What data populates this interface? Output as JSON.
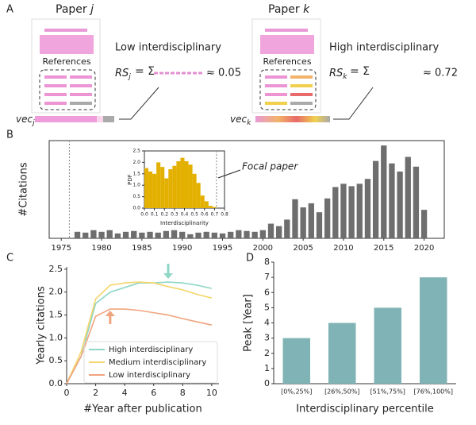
{
  "panel_labels": [
    "A",
    "B",
    "C",
    "D"
  ],
  "diagram": {
    "left": {
      "paper": "Paper",
      "symbol": "j",
      "references": "References",
      "label": "Low interdisciplinary",
      "rs": "RS",
      "eq": "= Σ",
      "approx": "≈ 0.05",
      "vec": "vec"
    },
    "right": {
      "paper": "Paper",
      "symbol": "k",
      "references": "References",
      "label": "High interdisciplinary",
      "rs": "RS",
      "eq": "= Σ",
      "approx": "≈ 0.72",
      "vec": "vec"
    }
  },
  "chart_data": [
    {
      "type": "bar",
      "ylabel": "#Citations",
      "color": "#6e6e6e",
      "x": [
        1977,
        1978,
        1979,
        1980,
        1981,
        1982,
        1983,
        1984,
        1985,
        1986,
        1987,
        1988,
        1989,
        1990,
        1991,
        1992,
        1993,
        1994,
        1995,
        1996,
        1997,
        1998,
        1999,
        2000,
        2001,
        2002,
        2003,
        2004,
        2005,
        2006,
        2007,
        2008,
        2009,
        2010,
        2011,
        2012,
        2013,
        2014,
        2015,
        2016,
        2017,
        2018,
        2019,
        2020
      ],
      "values": [
        8,
        7,
        10,
        8,
        10,
        6,
        8,
        9,
        7,
        8,
        7,
        9,
        10,
        8,
        5,
        7,
        8,
        7,
        6,
        8,
        10,
        9,
        8,
        10,
        18,
        15,
        23,
        48,
        38,
        43,
        32,
        49,
        63,
        67,
        64,
        67,
        73,
        95,
        114,
        92,
        82,
        100,
        88,
        35
      ],
      "xlim": [
        1973.5,
        2022.5
      ],
      "xticks": [
        1975,
        1980,
        1985,
        1990,
        1995,
        2000,
        2005,
        2010,
        2015,
        2020
      ],
      "ylim": [
        0,
        120
      ],
      "vline": 1976
    },
    {
      "type": "histogram",
      "xlabel": "Interdisciplinarity",
      "ylabel": "PDF",
      "color": "#e3b000",
      "annotation": "Focal paper",
      "bins": [
        0,
        0.04,
        0.08,
        0.12,
        0.16,
        0.2,
        0.24,
        0.28,
        0.32,
        0.36,
        0.4,
        0.44,
        0.48,
        0.52,
        0.56,
        0.6,
        0.64,
        0.68,
        0.72
      ],
      "values": [
        1.75,
        1.6,
        1.5,
        2.0,
        1.8,
        1.3,
        1.7,
        1.85,
        2.05,
        2.2,
        2.05,
        1.9,
        1.5,
        1.1,
        0.55,
        0.3,
        0.1,
        0.05
      ],
      "xlim": [
        0,
        0.8
      ],
      "xticks": [
        {
          "value": 0,
          "label": "0.0"
        },
        0.1,
        0.2,
        0.3,
        0.4,
        0.5,
        0.6,
        0.7,
        0.8
      ],
      "ylim": [
        0,
        2.5
      ],
      "yticks": [
        {
          "value": 0,
          "label": "0.0"
        },
        0.5,
        {
          "value": 1,
          "label": "1.0"
        },
        1.5,
        {
          "value": 2,
          "label": "2.0"
        },
        2.5
      ],
      "vline": 0.72
    },
    {
      "type": "line",
      "xlabel": "#Year after publication",
      "ylabel": "Yearly citations",
      "x": [
        0,
        1,
        2,
        3,
        4,
        5,
        6,
        7,
        8,
        9,
        10
      ],
      "series": [
        {
          "name": "High interdisciplinary",
          "color": "#8fd6c6",
          "values": [
            0,
            0.6,
            1.75,
            2.0,
            2.1,
            2.2,
            2.2,
            2.22,
            2.2,
            2.15,
            2.08
          ]
        },
        {
          "name": "Medium interdisciplinary",
          "color": "#f4d66c",
          "values": [
            0,
            0.7,
            1.85,
            2.15,
            2.2,
            2.22,
            2.2,
            2.12,
            2.05,
            1.95,
            1.87
          ]
        },
        {
          "name": "Low interdisciplinary",
          "color": "#f0a47e",
          "values": [
            0,
            0.6,
            1.47,
            1.63,
            1.63,
            1.6,
            1.55,
            1.5,
            1.42,
            1.35,
            1.28
          ]
        }
      ],
      "xlim": [
        0,
        10.5
      ],
      "xticks": [
        0,
        2,
        4,
        6,
        8,
        10
      ],
      "ylim": [
        0,
        2.55
      ],
      "yticks": [
        {
          "value": 0,
          "label": "0.0"
        },
        0.5,
        {
          "value": 1,
          "label": "1.0"
        },
        1.5,
        {
          "value": 2,
          "label": "2.0"
        },
        2.5
      ]
    },
    {
      "type": "bar",
      "xlabel": "Interdisciplinary percentile",
      "ylabel": "Peak [Year]",
      "color": "#80b3b5",
      "categories": [
        "[0%,25%]",
        "[26%,50%]",
        "[51%,75%]",
        "[76%,100%]"
      ],
      "values": [
        3,
        4,
        5,
        7
      ],
      "ylim": [
        0,
        8
      ],
      "yticks": [
        0,
        1,
        2,
        3,
        4,
        5,
        6,
        7,
        8
      ]
    }
  ]
}
